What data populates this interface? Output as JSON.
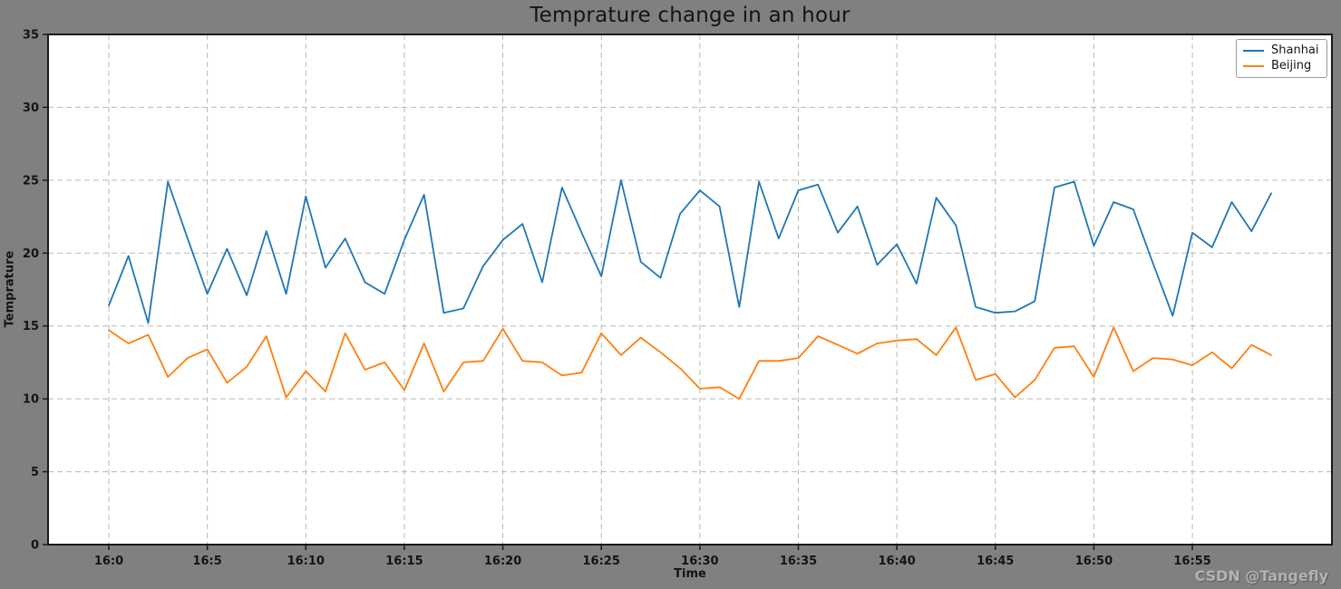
{
  "figure": {
    "background": "#808080",
    "watermark": "CSDN @Tangefly"
  },
  "chart_data": {
    "type": "line",
    "title": "Temprature change in an hour",
    "xlabel": "Time",
    "ylabel": "Temprature",
    "ylim": [
      0,
      35
    ],
    "grid": "dashed",
    "legend_position": "upper right",
    "x_start": "16:0",
    "x_step_minutes": 1,
    "y_ticks": [
      0,
      5,
      10,
      15,
      20,
      25,
      30,
      35
    ],
    "x_ticks": [
      {
        "minute": 0,
        "label": "16:0"
      },
      {
        "minute": 5,
        "label": "16:5"
      },
      {
        "minute": 10,
        "label": "16:10"
      },
      {
        "minute": 15,
        "label": "16:15"
      },
      {
        "minute": 20,
        "label": "16:20"
      },
      {
        "minute": 25,
        "label": "16:25"
      },
      {
        "minute": 30,
        "label": "16:30"
      },
      {
        "minute": 35,
        "label": "16:35"
      },
      {
        "minute": 40,
        "label": "16:40"
      },
      {
        "minute": 45,
        "label": "16:45"
      },
      {
        "minute": 50,
        "label": "16:50"
      },
      {
        "minute": 55,
        "label": "16:55"
      }
    ],
    "series": [
      {
        "name": "Shanhai",
        "color": "#1f77b4",
        "values": [
          16.4,
          19.8,
          15.2,
          24.9,
          21.0,
          17.2,
          20.3,
          17.1,
          21.5,
          17.2,
          23.9,
          19.0,
          21.0,
          18.0,
          17.2,
          20.9,
          24.0,
          15.9,
          16.2,
          19.1,
          20.9,
          22.0,
          18.0,
          24.5,
          21.4,
          18.4,
          25.0,
          19.4,
          18.3,
          22.7,
          24.3,
          23.2,
          16.3,
          24.9,
          21.0,
          24.3,
          24.7,
          21.4,
          23.2,
          19.2,
          20.6,
          17.9,
          23.8,
          21.9,
          16.3,
          15.9,
          16.0,
          16.7,
          24.5,
          24.9,
          20.5,
          23.5,
          23.0,
          19.3,
          15.7,
          21.4,
          20.4,
          23.5,
          21.5,
          24.1
        ]
      },
      {
        "name": "Beijing",
        "color": "#ff7f0e",
        "values": [
          14.7,
          13.8,
          14.4,
          11.5,
          12.8,
          13.4,
          11.1,
          12.2,
          14.3,
          10.1,
          11.9,
          10.5,
          14.5,
          12.0,
          12.5,
          10.6,
          13.8,
          10.5,
          12.5,
          12.6,
          14.8,
          12.6,
          12.5,
          11.6,
          11.8,
          14.5,
          13.0,
          14.2,
          13.2,
          12.1,
          10.7,
          10.8,
          10.0,
          12.6,
          12.6,
          12.8,
          14.3,
          13.7,
          13.1,
          13.8,
          14.0,
          14.1,
          13.0,
          14.9,
          11.3,
          11.7,
          10.1,
          11.3,
          13.5,
          13.6,
          11.5,
          14.9,
          11.9,
          12.8,
          12.7,
          12.3,
          13.2,
          12.1,
          13.7,
          13.0
        ]
      }
    ]
  }
}
